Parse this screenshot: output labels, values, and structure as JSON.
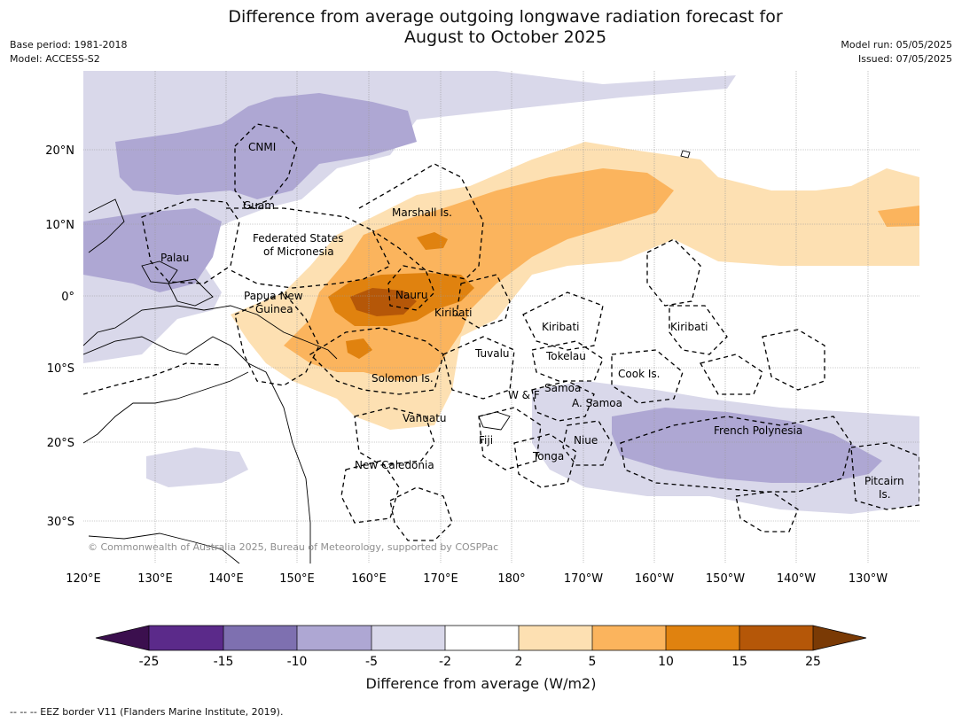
{
  "header": {
    "title_line1": "Difference from average outgoing longwave radiation forecast for",
    "title_line2": "August to October 2025",
    "base_period": "Base period: 1981-2018",
    "model": "Model: ACCESS-S2",
    "model_run": "Model run: 05/05/2025",
    "issued": "Issued: 07/05/2025"
  },
  "map": {
    "lon_ticks": [
      "120°E",
      "130°E",
      "140°E",
      "150°E",
      "160°E",
      "170°E",
      "180°",
      "170°W",
      "160°W",
      "150°W",
      "140°W",
      "130°W"
    ],
    "lat_ticks": [
      "20°N",
      "10°N",
      "0°",
      "10°S",
      "20°S",
      "30°S"
    ],
    "copyright": "© Commonwealth of Australia 2025, Bureau of Meteorology, supported by COSPPac",
    "places": [
      {
        "id": "cnmi",
        "text": "CNMI"
      },
      {
        "id": "guam",
        "text": "Guam"
      },
      {
        "id": "marshall",
        "text": "Marshall Is."
      },
      {
        "id": "fsm1",
        "text": "Federated States"
      },
      {
        "id": "fsm2",
        "text": "of Micronesia"
      },
      {
        "id": "palau",
        "text": "Palau"
      },
      {
        "id": "nauru",
        "text": "Nauru"
      },
      {
        "id": "png1",
        "text": "Papua New"
      },
      {
        "id": "png2",
        "text": "Guinea"
      },
      {
        "id": "kiribati1",
        "text": "Kiribati"
      },
      {
        "id": "kiribati2",
        "text": "Kiribati"
      },
      {
        "id": "kiribati3",
        "text": "Kiribati"
      },
      {
        "id": "tuvalu",
        "text": "Tuvalu"
      },
      {
        "id": "tokelau",
        "text": "Tokelau"
      },
      {
        "id": "cook",
        "text": "Cook Is."
      },
      {
        "id": "solomon",
        "text": "Solomon Is."
      },
      {
        "id": "wf",
        "text": "W & F"
      },
      {
        "id": "samoa",
        "text": "Samoa"
      },
      {
        "id": "asamoa",
        "text": "A. Samoa"
      },
      {
        "id": "vanuatu",
        "text": "Vanuatu"
      },
      {
        "id": "fiji",
        "text": "Fiji"
      },
      {
        "id": "niue",
        "text": "Niue"
      },
      {
        "id": "frpoly",
        "text": "French Polynesia"
      },
      {
        "id": "tonga",
        "text": "Tonga"
      },
      {
        "id": "newcal",
        "text": "New Caledonia"
      },
      {
        "id": "pitcairn1",
        "text": "Pitcairn"
      },
      {
        "id": "pitcairn2",
        "text": "Is."
      }
    ]
  },
  "colorbar": {
    "label": "Difference from average (W/m2)",
    "ticks": [
      "-25",
      "-15",
      "-10",
      "-5",
      "-2",
      "2",
      "5",
      "10",
      "15",
      "25"
    ],
    "colors": [
      "#3b0f4e",
      "#5b2a8a",
      "#7e70b0",
      "#aea7d3",
      "#d9d8ea",
      "#ffffff",
      "#fde0b2",
      "#fbb45d",
      "#e0820f",
      "#b55708",
      "#7a3a05"
    ]
  },
  "footnote": "--  --  -- EEZ border V11 (Flanders Marine Institute, 2019).",
  "colors": {
    "purple_light": "#d9d8ea",
    "purple_mid": "#aea7d3",
    "orange_light": "#fde0b2",
    "orange_mid": "#fbb45d",
    "orange_dark": "#e0820f",
    "brown": "#b55708"
  }
}
